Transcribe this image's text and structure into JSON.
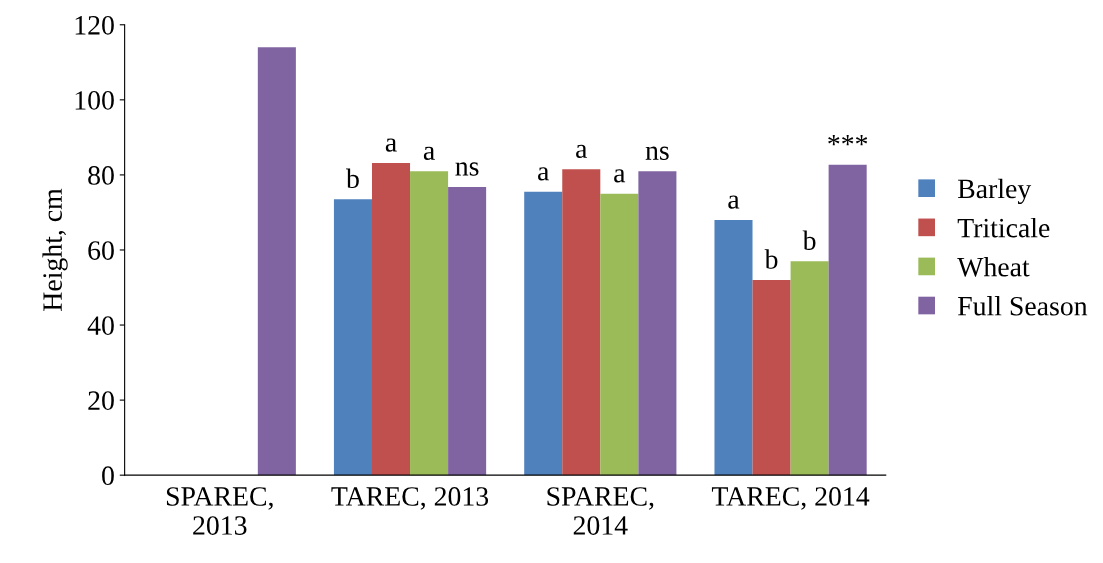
{
  "chart_data": {
    "type": "bar",
    "ylabel": "Height, cm",
    "categories": [
      "SPAREC,\n2013",
      "TAREC, 2013",
      "SPAREC,\n2014",
      "TAREC, 2014"
    ],
    "series": [
      {
        "name": "Barley",
        "color": "#4f81bd",
        "values": [
          null,
          73.5,
          75.5,
          68
        ],
        "value_labels": [
          null,
          "b",
          "a",
          "a"
        ]
      },
      {
        "name": "Triticale",
        "color": "#c0504d",
        "values": [
          null,
          83.2,
          81.5,
          52
        ],
        "value_labels": [
          null,
          "a",
          "a",
          "b"
        ]
      },
      {
        "name": "Wheat",
        "color": "#9bbb59",
        "values": [
          null,
          81,
          75,
          57
        ],
        "value_labels": [
          null,
          "a",
          "a",
          "b"
        ]
      },
      {
        "name": "Full Season",
        "color": "#8064a2",
        "values": [
          114,
          76.8,
          81,
          82.7
        ],
        "value_labels": [
          null,
          "ns",
          "ns",
          "***"
        ]
      }
    ],
    "ylim": [
      0,
      120
    ],
    "yticks": [
      0,
      20,
      40,
      60,
      80,
      100,
      120
    ],
    "grid": false,
    "legend": "right"
  }
}
